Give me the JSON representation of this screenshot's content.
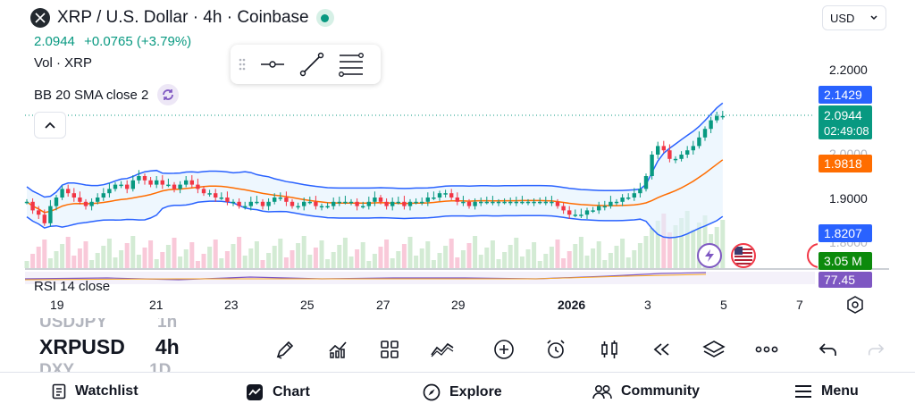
{
  "header": {
    "symbol_title": "XRP / U.S. Dollar · 4h · Coinbase",
    "price": "2.0944",
    "change": "+0.0765 (+3.79%)",
    "volume_label": "Vol · XRP",
    "indicator_label": "BB 20 SMA close 2",
    "rsi_label": "RSI 14 close"
  },
  "currency_select": {
    "value": "USD"
  },
  "price_axis": {
    "ticks": [
      "2.2000",
      "2.0000",
      "1.9000",
      "1.8000"
    ],
    "tags": {
      "bb_upper": "2.1429",
      "last_price": "2.0944",
      "countdown": "02:49:08",
      "bb_basis": "1.9818",
      "bb_lower": "1.8207",
      "volume": "3.05 M",
      "rsi": "77.45"
    }
  },
  "time_axis": {
    "labels": [
      "19",
      "21",
      "23",
      "25",
      "27",
      "29",
      "2026",
      "3",
      "5",
      "7"
    ]
  },
  "watchlist_peek": {
    "prev_symbol": "USDJPY",
    "prev_interval": "1h",
    "symbol": "XRPUSD",
    "interval": "4h",
    "next_symbol": "DXY",
    "next_interval": "1D"
  },
  "bottom_nav": {
    "watchlist": "Watchlist",
    "chart": "Chart",
    "explore": "Explore",
    "community": "Community",
    "menu": "Menu"
  },
  "colors": {
    "up": "#089981",
    "down": "#f23645",
    "bb_band": "#2962ff",
    "bb_basis": "#ff6d00",
    "volume_tag": "#0c8a0c",
    "rsi_tag": "#7e57c2"
  },
  "icons": {
    "toolbar": [
      "pen-icon",
      "indicators-icon",
      "layouts-icon",
      "compare-icon",
      "add-icon",
      "alert-icon",
      "candle-type-icon",
      "replay-icon",
      "layers-icon",
      "more-icon",
      "undo-icon",
      "redo-icon"
    ]
  }
}
